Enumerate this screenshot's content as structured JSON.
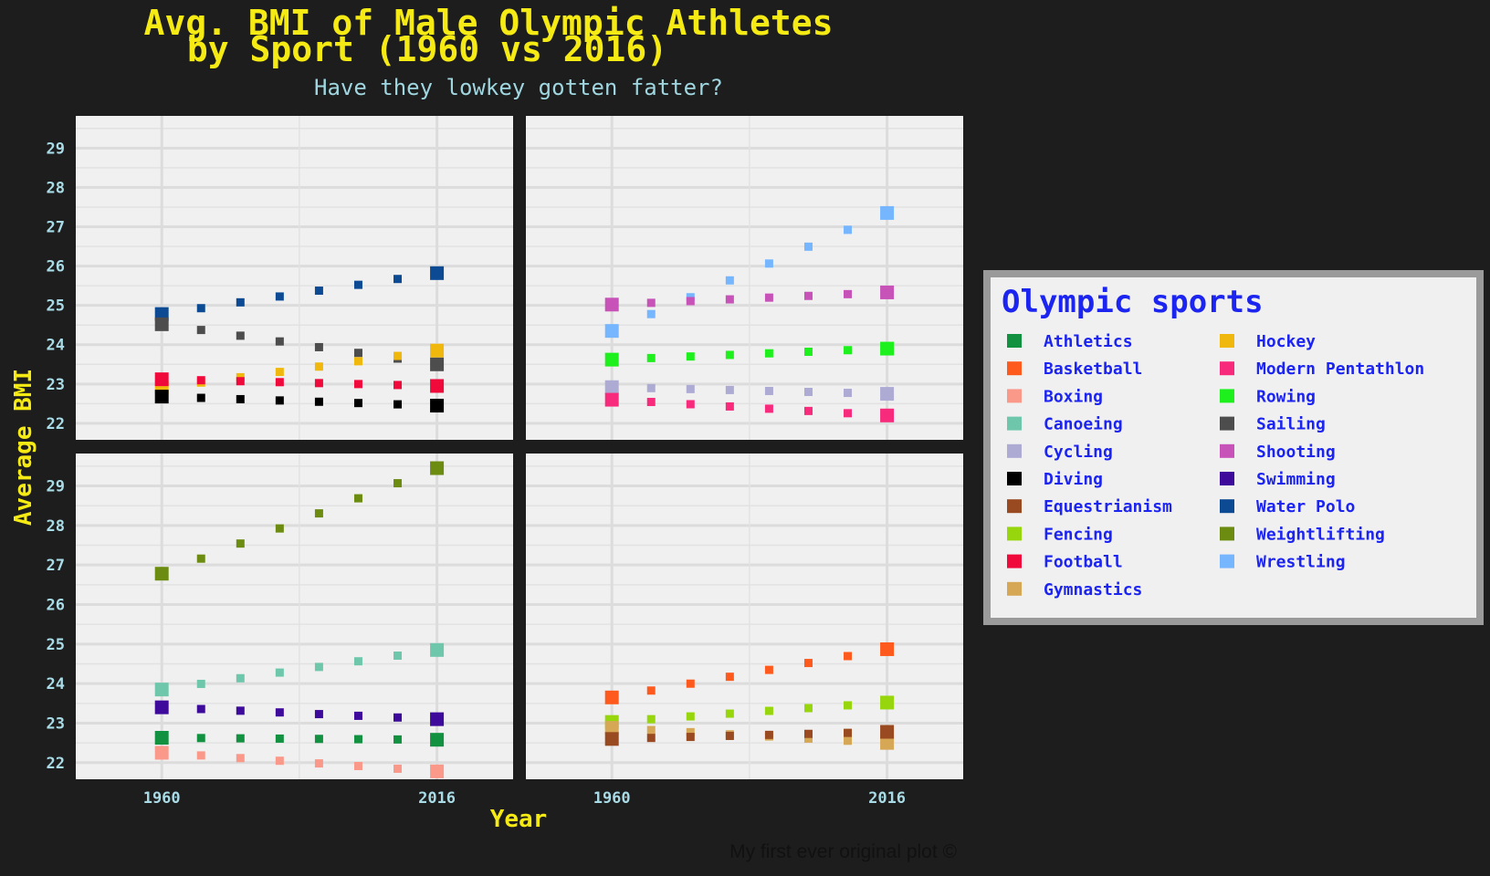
{
  "title_line1": "Avg. BMI of Male Olympic Athletes",
  "title_line2": "by Sport (1960 vs 2016)",
  "subtitle": "Have they lowkey gotten fatter?",
  "caption": "My first ever original plot ©",
  "colors": {
    "background": "#1d1d1d",
    "panel": "#f0f0f0",
    "title": "#f5ea14",
    "tick": "#a9dbe6",
    "legend_text": "#1c24f0",
    "legend_border": "#9a9a9a"
  },
  "chart_data": {
    "type": "scatter",
    "xlabel": "Year",
    "ylabel": "Average BMI",
    "x_ticks": [
      1960,
      2016
    ],
    "y_ticks": [
      22,
      23,
      24,
      25,
      26,
      27,
      28,
      29
    ],
    "legend": {
      "title": "Olympic sports",
      "placement": "right",
      "columns": [
        [
          "Athletics",
          "Basketball",
          "Boxing",
          "Canoeing",
          "Cycling",
          "Diving",
          "Equestrianism",
          "Fencing",
          "Football",
          "Gymnastics"
        ],
        [
          "Hockey",
          "Modern Pentathlon",
          "Rowing",
          "Sailing",
          "Shooting",
          "Swimming",
          "Water Polo",
          "Weightlifting",
          "Wrestling"
        ]
      ]
    },
    "panels": [
      {
        "position": "top-left",
        "series": [
          {
            "name": "Water Polo",
            "color": "#0d4a94",
            "values": [
              24.78,
              25.82
            ]
          },
          {
            "name": "Sailing",
            "color": "#4d4d4d",
            "values": [
              24.52,
              23.5
            ]
          },
          {
            "name": "Hockey",
            "color": "#f0b80c",
            "values": [
              22.9,
              23.85
            ]
          },
          {
            "name": "Football",
            "color": "#f00a3c",
            "values": [
              23.12,
              22.95
            ]
          },
          {
            "name": "Diving",
            "color": "#000000",
            "values": [
              22.68,
              22.45
            ]
          }
        ]
      },
      {
        "position": "top-right",
        "series": [
          {
            "name": "Wrestling",
            "color": "#75b6ff",
            "values": [
              24.35,
              27.35
            ]
          },
          {
            "name": "Shooting",
            "color": "#c752b8",
            "values": [
              25.02,
              25.33
            ]
          },
          {
            "name": "Rowing",
            "color": "#1ef01e",
            "values": [
              23.62,
              23.9
            ]
          },
          {
            "name": "Cycling",
            "color": "#adaad4",
            "values": [
              22.92,
              22.75
            ]
          },
          {
            "name": "Modern Pentathlon",
            "color": "#f72a7c",
            "values": [
              22.6,
              22.2
            ]
          }
        ]
      },
      {
        "position": "bottom-left",
        "series": [
          {
            "name": "Weightlifting",
            "color": "#6b8c10",
            "values": [
              26.78,
              29.45
            ]
          },
          {
            "name": "Canoeing",
            "color": "#6fc7ab",
            "values": [
              23.85,
              24.85
            ]
          },
          {
            "name": "Swimming",
            "color": "#3d0a9c",
            "values": [
              23.4,
              23.1
            ]
          },
          {
            "name": "Athletics",
            "color": "#129140",
            "values": [
              22.63,
              22.58
            ]
          },
          {
            "name": "Boxing",
            "color": "#fa998a",
            "values": [
              22.25,
              21.78
            ]
          }
        ]
      },
      {
        "position": "bottom-right",
        "series": [
          {
            "name": "Basketball",
            "color": "#ff5a1e",
            "values": [
              23.65,
              24.87
            ]
          },
          {
            "name": "Fencing",
            "color": "#97d60d",
            "values": [
              23.03,
              23.52
            ]
          },
          {
            "name": "Gymnastics",
            "color": "#d6a755",
            "values": [
              22.88,
              22.5
            ]
          },
          {
            "name": "Equestrianism",
            "color": "#9a4a20",
            "values": [
              22.6,
              22.78
            ]
          }
        ]
      }
    ]
  }
}
